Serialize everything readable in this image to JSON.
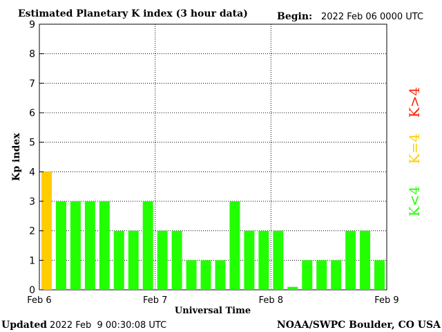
{
  "header": {
    "title": "Estimated Planetary K index (3 hour data)",
    "begin_label": "Begin:",
    "begin_value": "2022 Feb 06 0000 UTC"
  },
  "footer": {
    "updated_label": "Updated",
    "updated_value": "2022 Feb  9 00:30:08 UTC",
    "credit": "NOAA/SWPC Boulder, CO USA"
  },
  "legend": {
    "items": [
      {
        "label": "K<4",
        "color": "#22ff00"
      },
      {
        "label": "K=4",
        "color": "#ffcc00"
      },
      {
        "label": "K>4",
        "color": "#ff2200"
      }
    ]
  },
  "colors": {
    "below4": "#22ff00",
    "equal4": "#ffcc00",
    "above4": "#ff2200",
    "grid": "#000000"
  },
  "chart_data": {
    "type": "bar",
    "title": "Estimated Planetary K index (3 hour data)",
    "xlabel": "Universal Time",
    "ylabel": "Kp index",
    "ylim": [
      0,
      9
    ],
    "yticks": [
      "0",
      "1",
      "2",
      "3",
      "4",
      "5",
      "6",
      "7",
      "8",
      "9"
    ],
    "xticks": [
      "Feb 6",
      "Feb 7",
      "Feb 8",
      "Feb 9"
    ],
    "bars_per_day": 8,
    "grid": "dotted",
    "values": [
      4,
      3,
      3,
      3,
      3,
      2,
      2,
      3,
      2,
      2,
      1,
      1,
      1,
      3,
      2,
      2,
      2,
      0.1,
      1,
      1,
      1,
      2,
      2,
      1
    ]
  }
}
